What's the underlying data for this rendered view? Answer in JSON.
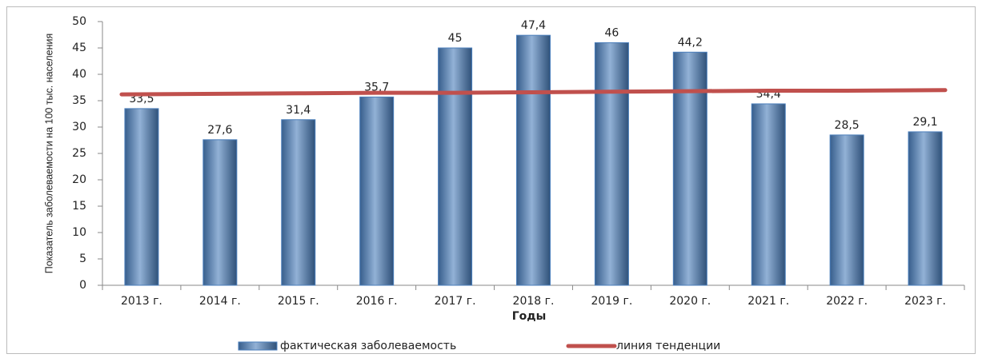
{
  "chart_data": {
    "type": "bar",
    "categories": [
      "2013 г.",
      "2014 г.",
      "2015 г.",
      "2016 г.",
      "2017 г.",
      "2018 г.",
      "2019 г.",
      "2020 г.",
      "2021 г.",
      "2022 г.",
      "2023 г."
    ],
    "series": [
      {
        "name": "фактическая заболеваемость",
        "type": "bar",
        "color": "#4a7ebb",
        "values": [
          33.5,
          27.6,
          31.4,
          35.7,
          45,
          47.4,
          46,
          44.2,
          34.4,
          28.5,
          29.1
        ],
        "value_labels": [
          "33,5",
          "27,6",
          "31,4",
          "35,7",
          "45",
          "47,4",
          "46",
          "44,2",
          "34,4",
          "28,5",
          "29,1"
        ]
      },
      {
        "name": "линия тенденции",
        "type": "line",
        "color": "#c0504d",
        "values": [
          36.2,
          36.3,
          36.4,
          36.5,
          36.5,
          36.6,
          36.7,
          36.8,
          36.9,
          36.9,
          37.0
        ]
      }
    ],
    "x_label": "Годы",
    "y_label": "Показатель заболеваемости на 100 тыс. населения",
    "ylim": [
      0,
      50
    ],
    "yticks": [
      0,
      5,
      10,
      15,
      20,
      25,
      30,
      35,
      40,
      45,
      50
    ],
    "legend": "bottom"
  }
}
